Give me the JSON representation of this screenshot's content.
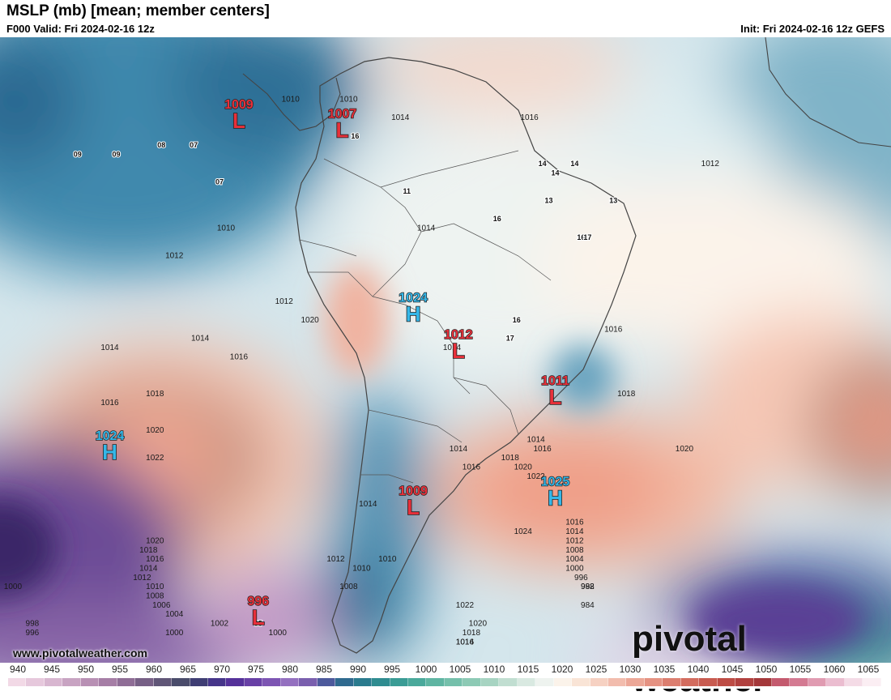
{
  "header": {
    "title": "MSLP (mb) [mean; member centers]",
    "valid": "F000 Valid: Fri 2024-02-16 12z",
    "init": "Init: Fri 2024-02-16 12z GEFS"
  },
  "footer": {
    "url": "www.pivotalweather.com",
    "brand": "pivotal weather"
  },
  "colors": {
    "high": "#35b7e8",
    "low": "#e8303a",
    "land_line": "#444444",
    "contour": "#1a1a1a"
  },
  "pressure_centers": [
    {
      "type": "L",
      "value": "1009",
      "lon": -93,
      "lat": 1
    },
    {
      "type": "L",
      "value": "1007",
      "lon": -77,
      "lat": 0
    },
    {
      "type": "H",
      "value": "1024",
      "lon": -66,
      "lat": -20
    },
    {
      "type": "L",
      "value": "1012",
      "lon": -59,
      "lat": -24
    },
    {
      "type": "L",
      "value": "1011",
      "lon": -44,
      "lat": -29
    },
    {
      "type": "H",
      "value": "1024",
      "lon": -113,
      "lat": -35
    },
    {
      "type": "L",
      "value": "1009",
      "lon": -66,
      "lat": -41
    },
    {
      "type": "H",
      "value": "1025",
      "lon": -44,
      "lat": -40
    },
    {
      "type": "L",
      "value": "996",
      "lon": -90,
      "lat": -53
    }
  ],
  "isobar_labels": [
    {
      "text": "1010",
      "lon": -85,
      "lat": 3
    },
    {
      "text": "1010",
      "lon": -76,
      "lat": 3
    },
    {
      "text": "1014",
      "lon": -68,
      "lat": 1
    },
    {
      "text": "1016",
      "lon": -48,
      "lat": 1
    },
    {
      "text": "1012",
      "lon": -20,
      "lat": -4
    },
    {
      "text": "1010",
      "lon": -95,
      "lat": -11
    },
    {
      "text": "1012",
      "lon": -103,
      "lat": -14
    },
    {
      "text": "1014",
      "lon": -64,
      "lat": -11
    },
    {
      "text": "1012",
      "lon": -86,
      "lat": -19
    },
    {
      "text": "1014",
      "lon": -99,
      "lat": -23
    },
    {
      "text": "1014",
      "lon": -113,
      "lat": -24
    },
    {
      "text": "1016",
      "lon": -93,
      "lat": -25
    },
    {
      "text": "1014",
      "lon": -60,
      "lat": -24
    },
    {
      "text": "1016",
      "lon": -35,
      "lat": -22
    },
    {
      "text": "1018",
      "lon": -33,
      "lat": -29
    },
    {
      "text": "1018",
      "lon": -106,
      "lat": -29
    },
    {
      "text": "1016",
      "lon": -113,
      "lat": -30
    },
    {
      "text": "1020",
      "lon": -106,
      "lat": -33
    },
    {
      "text": "1022",
      "lon": -106,
      "lat": -36
    },
    {
      "text": "1020",
      "lon": -24,
      "lat": -35
    },
    {
      "text": "1014",
      "lon": -47,
      "lat": -34
    },
    {
      "text": "1016",
      "lon": -46,
      "lat": -35
    },
    {
      "text": "1014",
      "lon": -59,
      "lat": -35
    },
    {
      "text": "1018",
      "lon": -51,
      "lat": -36
    },
    {
      "text": "1016",
      "lon": -57,
      "lat": -37
    },
    {
      "text": "1020",
      "lon": -49,
      "lat": -37
    },
    {
      "text": "1022",
      "lon": -47,
      "lat": -38
    },
    {
      "text": "1014",
      "lon": -73,
      "lat": -41
    },
    {
      "text": "1024",
      "lon": -49,
      "lat": -44
    },
    {
      "text": "1016",
      "lon": -41,
      "lat": -43
    },
    {
      "text": "1014",
      "lon": -41,
      "lat": -44
    },
    {
      "text": "1012",
      "lon": -41,
      "lat": -45
    },
    {
      "text": "1008",
      "lon": -41,
      "lat": -46
    },
    {
      "text": "1004",
      "lon": -41,
      "lat": -47
    },
    {
      "text": "1000",
      "lon": -41,
      "lat": -48
    },
    {
      "text": "996",
      "lon": -40,
      "lat": -49
    },
    {
      "text": "992",
      "lon": -39,
      "lat": -50
    },
    {
      "text": "988",
      "lon": -39,
      "lat": -50
    },
    {
      "text": "984",
      "lon": -39,
      "lat": -52
    },
    {
      "text": "1020",
      "lon": -106,
      "lat": -45
    },
    {
      "text": "1018",
      "lon": -107,
      "lat": -46
    },
    {
      "text": "1016",
      "lon": -106,
      "lat": -47
    },
    {
      "text": "1014",
      "lon": -107,
      "lat": -48
    },
    {
      "text": "1012",
      "lon": -108,
      "lat": -49
    },
    {
      "text": "1010",
      "lon": -106,
      "lat": -50
    },
    {
      "text": "1008",
      "lon": -106,
      "lat": -51
    },
    {
      "text": "1006",
      "lon": -105,
      "lat": -52
    },
    {
      "text": "1004",
      "lon": -103,
      "lat": -53
    },
    {
      "text": "1002",
      "lon": -96,
      "lat": -54
    },
    {
      "text": "1000",
      "lon": -103,
      "lat": -55
    },
    {
      "text": "1000",
      "lon": -87,
      "lat": -55
    },
    {
      "text": "1000",
      "lon": -128,
      "lat": -50
    },
    {
      "text": "998",
      "lon": -125,
      "lat": -54
    },
    {
      "text": "996",
      "lon": -125,
      "lat": -55
    },
    {
      "text": "1010",
      "lon": -70,
      "lat": -47
    },
    {
      "text": "1010",
      "lon": -74,
      "lat": -48
    },
    {
      "text": "1008",
      "lon": -76,
      "lat": -50
    },
    {
      "text": "1012",
      "lon": -78,
      "lat": -47
    },
    {
      "text": "1022",
      "lon": -58,
      "lat": -52
    },
    {
      "text": "1020",
      "lon": -56,
      "lat": -54
    },
    {
      "text": "1018",
      "lon": -57,
      "lat": -55
    },
    {
      "text": "1016",
      "lon": -58,
      "lat": -56
    },
    {
      "text": "1014",
      "lon": -58,
      "lat": -56
    },
    {
      "text": "1020",
      "lon": -82,
      "lat": -21
    }
  ],
  "member_labels": [
    {
      "text": "09",
      "lon": -118,
      "lat": -3
    },
    {
      "text": "09",
      "lon": -112,
      "lat": -3
    },
    {
      "text": "08",
      "lon": -105,
      "lat": -2
    },
    {
      "text": "07",
      "lon": -100,
      "lat": -2
    },
    {
      "text": "07",
      "lon": -96,
      "lat": -6
    },
    {
      "text": "16",
      "lon": -75,
      "lat": -1
    },
    {
      "text": "11",
      "lon": -67,
      "lat": -7
    },
    {
      "text": "14",
      "lon": -46,
      "lat": -4
    },
    {
      "text": "14",
      "lon": -41,
      "lat": -4
    },
    {
      "text": "14",
      "lon": -44,
      "lat": -5
    },
    {
      "text": "13",
      "lon": -45,
      "lat": -8
    },
    {
      "text": "13",
      "lon": -35,
      "lat": -8
    },
    {
      "text": "16",
      "lon": -53,
      "lat": -10
    },
    {
      "text": "16",
      "lon": -40,
      "lat": -12
    },
    {
      "text": "17",
      "lon": -39,
      "lat": -12
    },
    {
      "text": "16",
      "lon": -50,
      "lat": -21
    },
    {
      "text": "17",
      "lon": -51,
      "lat": -23
    },
    {
      "text": "95",
      "lon": -90,
      "lat": -54
    }
  ],
  "colorbar": {
    "labels": [
      "940",
      "945",
      "950",
      "955",
      "960",
      "965",
      "970",
      "975",
      "980",
      "985",
      "990",
      "995",
      "1000",
      "1005",
      "1010",
      "1015",
      "1020",
      "1025",
      "1030",
      "1035",
      "1040",
      "1045",
      "1050",
      "1055",
      "1060",
      "1065"
    ],
    "colors": [
      "#f2d9e6",
      "#e6c8dc",
      "#d8b6d0",
      "#c8a3c2",
      "#b890b4",
      "#a67ea6",
      "#8f6d96",
      "#776086",
      "#605677",
      "#4a4c6b",
      "#3f3e74",
      "#46358a",
      "#55319a",
      "#6840a6",
      "#7d55b3",
      "#9470c0",
      "#7a5fae",
      "#4d5a9c",
      "#2f6a8f",
      "#2a7b8e",
      "#2f8c90",
      "#3a9c95",
      "#4aa99b",
      "#5fb5a2",
      "#75c0ab",
      "#8dcab5",
      "#a7d4c2",
      "#c1ded1",
      "#d9e9e1",
      "#eef3ef",
      "#fbf3ea",
      "#f9e4d6",
      "#f6d1c2",
      "#f2bcad",
      "#ec a797",
      "#e59282",
      "#dc7e6f",
      "#d36c5e",
      "#c85b50",
      "#bd4c45",
      "#b1413f",
      "#a4383a",
      "#c45a6e",
      "#d47a92",
      "#e09bb1",
      "#ebbdd0",
      "#f4dbe6",
      "#fbeef3"
    ]
  }
}
